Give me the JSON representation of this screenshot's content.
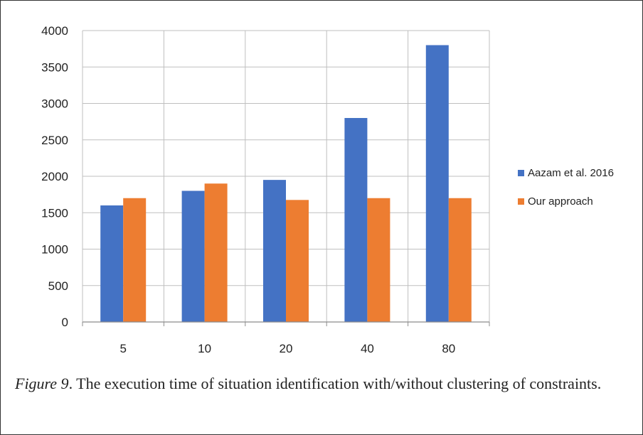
{
  "chart_data": {
    "type": "bar",
    "categories": [
      "5",
      "10",
      "20",
      "40",
      "80"
    ],
    "series": [
      {
        "name": "Aazam et al. 2016",
        "values": [
          1600,
          1800,
          1950,
          2800,
          3800
        ],
        "color": "#4472C4"
      },
      {
        "name": "Our approach",
        "values": [
          1700,
          1900,
          1675,
          1700,
          1700
        ],
        "color": "#ED7D31"
      }
    ],
    "ylim": [
      0,
      4000
    ],
    "yticks": [
      0,
      500,
      1000,
      1500,
      2000,
      2500,
      3000,
      3500,
      4000
    ],
    "grid": true,
    "legend_position": "right"
  },
  "caption": {
    "label": "Figure 9",
    "text": ". The execution time of situation identification with/without clustering of constraints."
  }
}
